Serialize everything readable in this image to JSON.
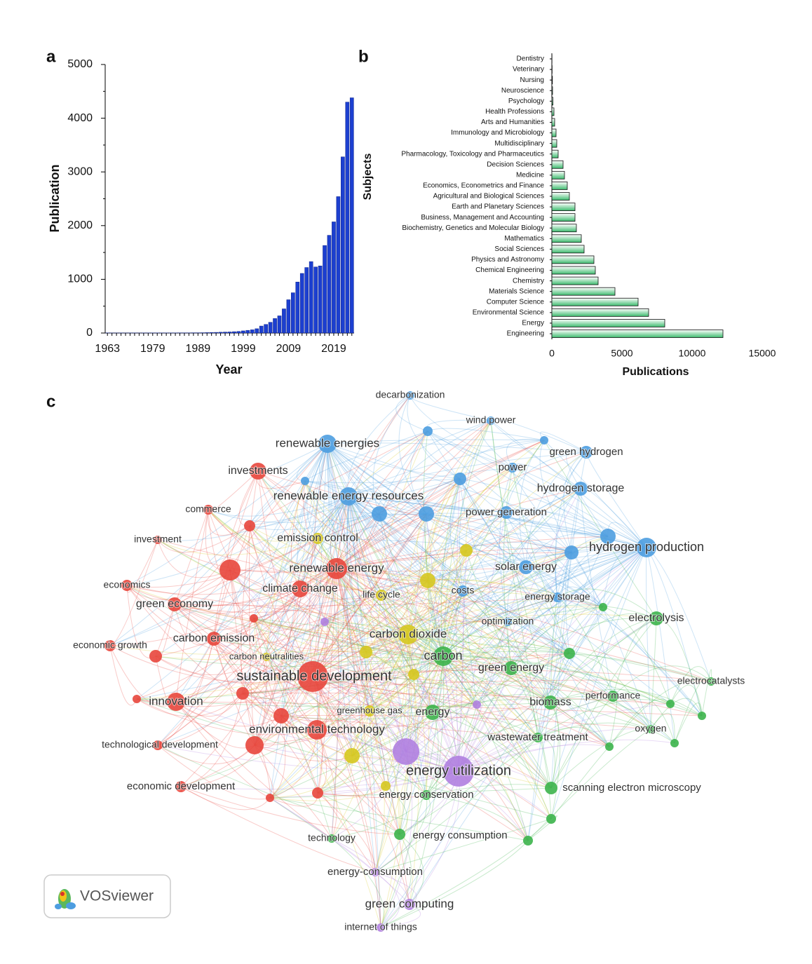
{
  "chart_data": [
    {
      "type": "bar",
      "panel": "a",
      "x_label": "Year",
      "y_label": "Publication",
      "color": "#1c3fd0",
      "categories": [
        "1963",
        null,
        null,
        null,
        null,
        null,
        null,
        null,
        null,
        null,
        "1979",
        null,
        null,
        null,
        null,
        null,
        null,
        null,
        null,
        null,
        "1989",
        null,
        null,
        null,
        null,
        null,
        null,
        null,
        null,
        null,
        "1999",
        null,
        null,
        null,
        null,
        null,
        null,
        null,
        null,
        null,
        "2009",
        null,
        null,
        null,
        null,
        null,
        null,
        null,
        null,
        null,
        "2019",
        null,
        null,
        null,
        null
      ],
      "values": [
        2,
        1,
        1,
        2,
        1,
        2,
        2,
        1,
        2,
        2,
        2,
        3,
        2,
        3,
        3,
        3,
        4,
        4,
        4,
        5,
        5,
        6,
        8,
        10,
        12,
        15,
        18,
        20,
        25,
        30,
        40,
        50,
        60,
        80,
        130,
        160,
        200,
        270,
        320,
        450,
        620,
        750,
        950,
        1110,
        1220,
        1330,
        1230,
        1250,
        1630,
        1820,
        2070,
        2540,
        3280,
        4300,
        4380
      ],
      "ylim": [
        0,
        5000
      ],
      "yticks": [
        0,
        1000,
        2000,
        3000,
        4000,
        5000
      ]
    },
    {
      "type": "hbar",
      "panel": "b",
      "x_label": "Publications",
      "y_label": "Subjects",
      "color": "#3dbb6e",
      "categories": [
        "Dentistry",
        "Veterinary",
        "Nursing",
        "Neuroscience",
        "Psychology",
        "Health Professions",
        "Arts and Humanities",
        "Immunology and Microbiology",
        "Multidisciplinary",
        "Pharmacology, Toxicology and Pharmaceutics",
        "Decision Sciences",
        "Medicine",
        "Economics, Econometrics and Finance",
        "Agricultural and Biological Sciences",
        "Earth and Planetary Sciences",
        "Business, Management and Accounting",
        "Biochemistry, Genetics and Molecular Biology",
        "Mathematics",
        "Social Sciences",
        "Physics and Astronomy",
        "Chemical Engineering",
        "Chemistry",
        "Materials Science",
        "Computer Science",
        "Environmental Science",
        "Energy",
        "Engineering"
      ],
      "values": [
        10,
        20,
        40,
        50,
        80,
        150,
        200,
        300,
        350,
        450,
        800,
        900,
        1100,
        1250,
        1650,
        1650,
        1750,
        2100,
        2300,
        3000,
        3100,
        3300,
        4500,
        6150,
        6900,
        8050,
        12200
      ],
      "xlim": [
        0,
        15000
      ],
      "xticks": [
        0,
        5000,
        10000,
        15000
      ]
    }
  ],
  "network": {
    "panel": "c",
    "logo": "VOSviewer",
    "nodes": [
      {
        "label": "decarbonization",
        "color": "#4d9de0"
      },
      {
        "label": "wind power",
        "color": "#4d9de0"
      },
      {
        "label": "renewable energies",
        "color": "#4d9de0"
      },
      {
        "label": "green hydrogen",
        "color": "#4d9de0"
      },
      {
        "label": "power",
        "color": "#4d9de0"
      },
      {
        "label": "hydrogen storage",
        "color": "#4d9de0"
      },
      {
        "label": "renewable energy resources",
        "color": "#4d9de0"
      },
      {
        "label": "power generation",
        "color": "#4d9de0"
      },
      {
        "label": "hydrogen production",
        "color": "#4d9de0"
      },
      {
        "label": "solar energy",
        "color": "#4d9de0"
      },
      {
        "label": "costs",
        "color": "#4d9de0"
      },
      {
        "label": "energy storage",
        "color": "#4d9de0"
      },
      {
        "label": "optimization",
        "color": "#4d9de0"
      },
      {
        "label": "investments",
        "color": "#e8463c"
      },
      {
        "label": "commerce",
        "color": "#e8463c"
      },
      {
        "label": "investment",
        "color": "#e8463c"
      },
      {
        "label": "economics",
        "color": "#e8463c"
      },
      {
        "label": "green economy",
        "color": "#e8463c"
      },
      {
        "label": "economic growth",
        "color": "#e8463c"
      },
      {
        "label": "carbon emission",
        "color": "#e8463c"
      },
      {
        "label": "innovation",
        "color": "#e8463c"
      },
      {
        "label": "technological development",
        "color": "#e8463c"
      },
      {
        "label": "economic development",
        "color": "#e8463c"
      },
      {
        "label": "climate change",
        "color": "#e8463c"
      },
      {
        "label": "renewable energy",
        "color": "#e8463c"
      },
      {
        "label": "sustainable development",
        "color": "#e8463c"
      },
      {
        "label": "environmental technology",
        "color": "#e8463c"
      },
      {
        "label": "carbon neutralities",
        "color": "#d6c81f"
      },
      {
        "label": "emission control",
        "color": "#d6c81f"
      },
      {
        "label": "life cycle",
        "color": "#d6c81f"
      },
      {
        "label": "carbon dioxide",
        "color": "#d6c81f"
      },
      {
        "label": "greenhouse gas",
        "color": "#d6c81f"
      },
      {
        "label": "electrolysis",
        "color": "#3cb44b"
      },
      {
        "label": "carbon",
        "color": "#3cb44b"
      },
      {
        "label": "green energy",
        "color": "#3cb44b"
      },
      {
        "label": "electrocatalysts",
        "color": "#3cb44b"
      },
      {
        "label": "performance",
        "color": "#3cb44b"
      },
      {
        "label": "biomass",
        "color": "#3cb44b"
      },
      {
        "label": "energy",
        "color": "#3cb44b"
      },
      {
        "label": "oxygen",
        "color": "#3cb44b"
      },
      {
        "label": "wastewater treatment",
        "color": "#3cb44b"
      },
      {
        "label": "scanning electron microscopy",
        "color": "#3cb44b"
      },
      {
        "label": "energy conservation",
        "color": "#3cb44b"
      },
      {
        "label": "energy consumption",
        "color": "#3cb44b"
      },
      {
        "label": "technology",
        "color": "#3cb44b"
      },
      {
        "label": "energy utilization",
        "color": "#b07fe0"
      },
      {
        "label": "energy-consumption",
        "color": "#b07fe0"
      },
      {
        "label": "green computing",
        "color": "#b07fe0"
      },
      {
        "label": "internet of things",
        "color": "#b07fe0"
      }
    ]
  }
}
